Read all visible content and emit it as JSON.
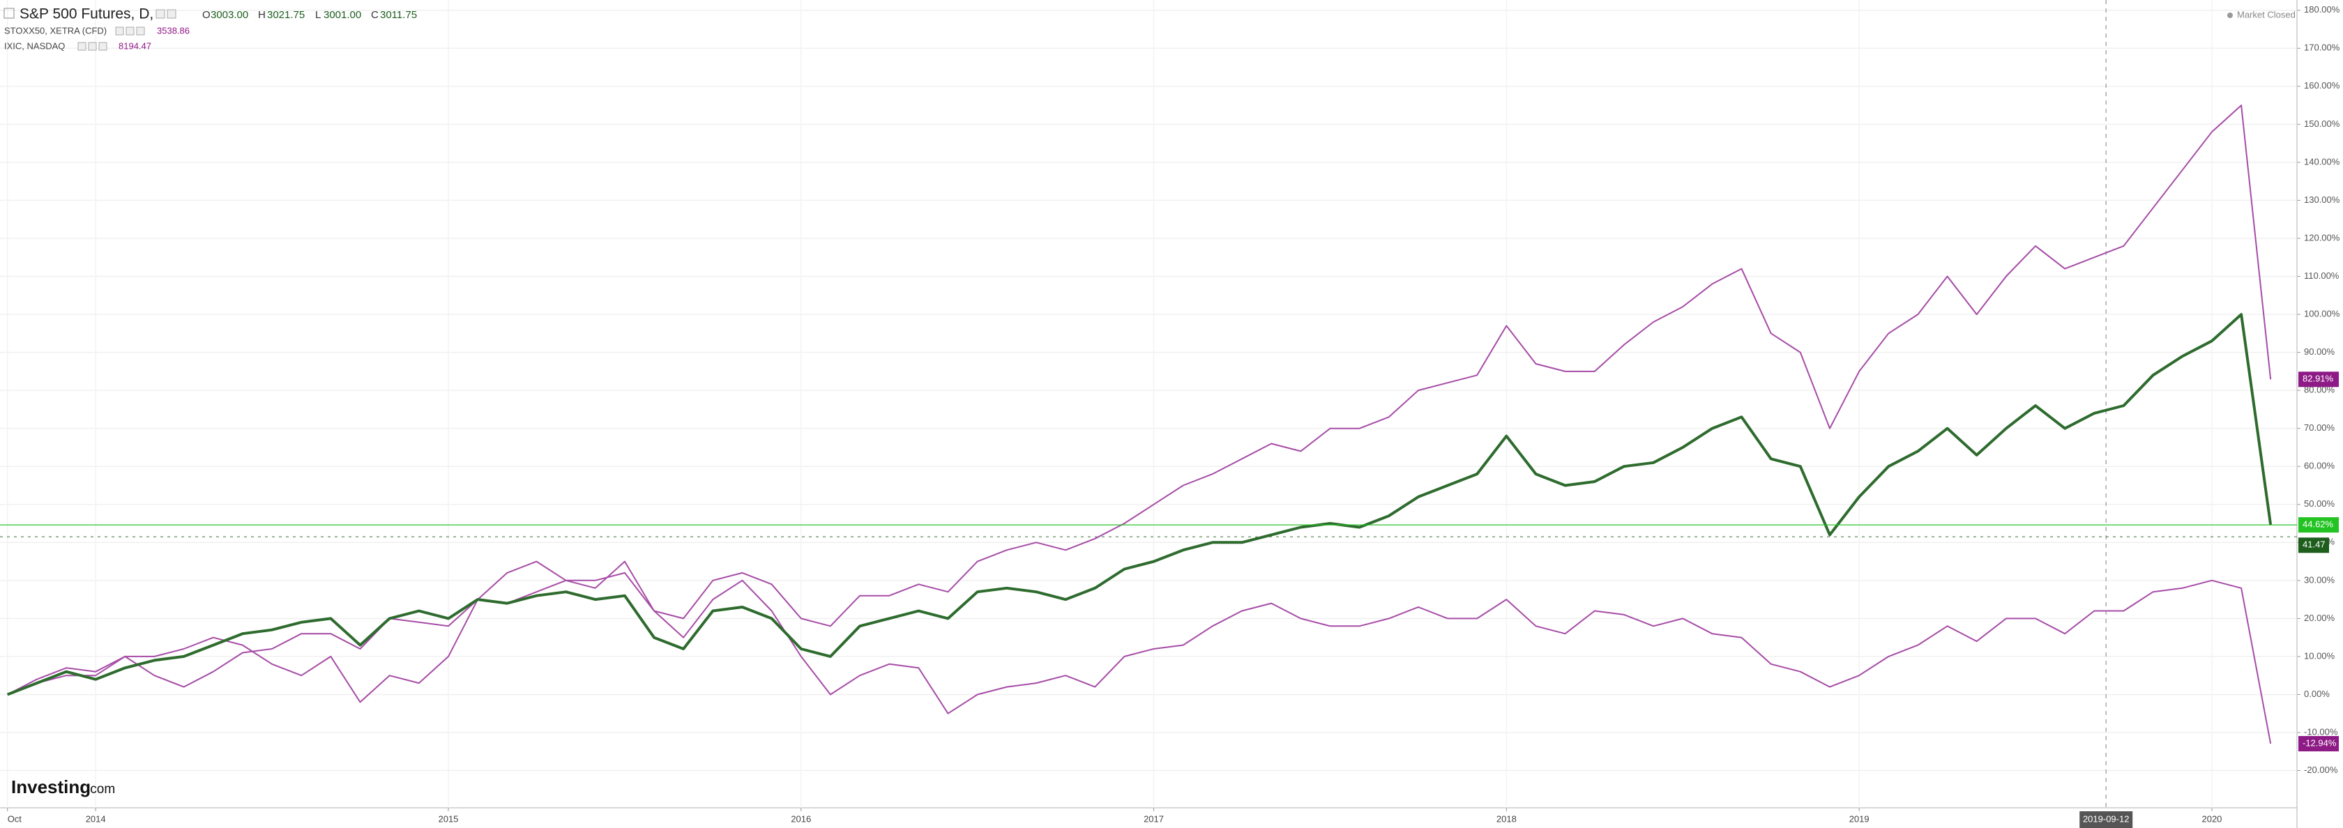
{
  "chart_data": {
    "type": "line",
    "header": {
      "open_label": "O",
      "open": "3003.00",
      "high_label": "H",
      "high": "3021.75",
      "low_label": "L",
      "low": "3001.00",
      "close_label": "C",
      "close": "3011.75",
      "status": "Market Closed",
      "logo": "Investing",
      "logo_suffix": ".com"
    },
    "crosshair_label": "2019-09-12",
    "categories": [
      "Oct",
      null,
      null,
      "2014",
      null,
      null,
      null,
      null,
      null,
      null,
      null,
      null,
      null,
      null,
      null,
      "2015",
      null,
      null,
      null,
      null,
      null,
      null,
      null,
      null,
      null,
      null,
      null,
      "2016",
      null,
      null,
      null,
      null,
      null,
      null,
      null,
      null,
      null,
      null,
      null,
      "2017",
      null,
      null,
      null,
      null,
      null,
      null,
      null,
      null,
      null,
      null,
      null,
      "2018",
      null,
      null,
      null,
      null,
      null,
      null,
      null,
      null,
      null,
      null,
      null,
      "2019",
      null,
      null,
      null,
      null,
      null,
      null,
      null,
      null,
      null,
      null,
      null,
      "2020",
      null,
      null
    ],
    "series": [
      {
        "name": "S&P 500 Futures, D,",
        "color": "#2e6b2e",
        "last_color": "#22c322",
        "values": [
          0,
          3,
          6,
          4,
          7,
          9,
          10,
          13,
          16,
          17,
          19,
          20,
          13,
          20,
          22,
          20,
          25,
          24,
          26,
          27,
          25,
          26,
          15,
          12,
          22,
          23,
          20,
          12,
          10,
          18,
          20,
          22,
          20,
          27,
          28,
          27,
          25,
          28,
          33,
          35,
          38,
          40,
          40,
          42,
          44,
          45,
          44,
          47,
          52,
          55,
          58,
          68,
          58,
          55,
          56,
          60,
          61,
          65,
          70,
          73,
          62,
          60,
          42,
          52,
          60,
          64,
          70,
          63,
          70,
          76,
          70,
          74,
          76,
          84,
          89,
          93,
          100,
          44.62
        ],
        "value_labels": [
          null,
          null,
          null,
          null,
          null,
          null,
          null,
          null,
          null,
          null,
          null,
          null,
          null,
          null,
          null,
          null,
          null,
          null,
          null,
          null,
          null,
          null,
          null,
          null,
          null,
          null,
          null,
          null,
          null,
          null,
          null,
          null,
          null,
          null,
          null,
          null,
          null,
          null,
          null,
          null,
          null,
          null,
          null,
          null,
          null,
          null,
          null,
          null,
          null,
          null,
          null,
          null,
          null,
          null,
          null,
          null,
          null,
          null,
          null,
          null,
          null,
          null,
          null,
          null,
          null,
          null,
          null,
          null,
          null,
          null,
          null,
          null,
          null,
          null,
          null,
          null,
          null,
          "44.62%"
        ]
      },
      {
        "name": "STOXX50, XETRA (CFD)",
        "last_price": "3538.86",
        "color": "#a64ca6",
        "last_color": "#8e1a86",
        "values": [
          0,
          3,
          5,
          5,
          10,
          10,
          12,
          15,
          13,
          8,
          5,
          10,
          -2,
          5,
          3,
          10,
          25,
          32,
          35,
          30,
          28,
          35,
          22,
          15,
          25,
          30,
          22,
          10,
          0,
          5,
          8,
          7,
          -5,
          0,
          2,
          3,
          5,
          2,
          10,
          12,
          13,
          18,
          22,
          24,
          20,
          18,
          18,
          20,
          23,
          20,
          20,
          25,
          18,
          16,
          22,
          21,
          18,
          20,
          16,
          15,
          8,
          6,
          2,
          5,
          10,
          13,
          18,
          14,
          20,
          20,
          16,
          22,
          22,
          27,
          28,
          30,
          28,
          -12.94
        ],
        "value_labels": [
          null,
          null,
          null,
          null,
          null,
          null,
          null,
          null,
          null,
          null,
          null,
          null,
          null,
          null,
          null,
          null,
          null,
          null,
          null,
          null,
          null,
          null,
          null,
          null,
          null,
          null,
          null,
          null,
          null,
          null,
          null,
          null,
          null,
          null,
          null,
          null,
          null,
          null,
          null,
          null,
          null,
          null,
          null,
          null,
          null,
          null,
          null,
          null,
          null,
          null,
          null,
          null,
          null,
          null,
          null,
          null,
          null,
          null,
          null,
          null,
          null,
          null,
          null,
          null,
          null,
          null,
          null,
          null,
          null,
          null,
          null,
          null,
          null,
          null,
          null,
          null,
          null,
          "-12.94%"
        ]
      },
      {
        "name": "IXIC, NASDAQ",
        "last_price": "8194.47",
        "color": "#a64ca6",
        "last_color": "#8e1a86",
        "values": [
          0,
          4,
          7,
          6,
          10,
          5,
          2,
          6,
          11,
          12,
          16,
          16,
          12,
          20,
          19,
          18,
          25,
          24,
          27,
          30,
          30,
          32,
          22,
          20,
          30,
          32,
          29,
          20,
          18,
          26,
          26,
          29,
          27,
          35,
          38,
          40,
          38,
          41,
          45,
          50,
          55,
          58,
          62,
          66,
          64,
          70,
          70,
          73,
          80,
          82,
          84,
          97,
          87,
          85,
          85,
          92,
          98,
          102,
          108,
          112,
          95,
          90,
          70,
          85,
          95,
          100,
          110,
          100,
          110,
          118,
          112,
          115,
          118,
          128,
          138,
          148,
          155,
          82.91
        ],
        "value_labels": [
          null,
          null,
          null,
          null,
          null,
          null,
          null,
          null,
          null,
          null,
          null,
          null,
          null,
          null,
          null,
          null,
          null,
          null,
          null,
          null,
          null,
          null,
          null,
          null,
          null,
          null,
          null,
          null,
          null,
          null,
          null,
          null,
          null,
          null,
          null,
          null,
          null,
          null,
          null,
          null,
          null,
          null,
          null,
          null,
          null,
          null,
          null,
          null,
          null,
          null,
          null,
          null,
          null,
          null,
          null,
          null,
          null,
          null,
          null,
          null,
          null,
          null,
          null,
          null,
          null,
          null,
          null,
          null,
          null,
          null,
          null,
          null,
          null,
          null,
          null,
          null,
          null,
          "82.91%"
        ]
      }
    ],
    "reference_line": 41.47,
    "reference_color": "#1d5e1d",
    "ylim": [
      -29.8,
      182.7
    ],
    "yticks": [
      {
        "value": -20,
        "label": "-20.00%"
      },
      {
        "value": -10,
        "label": "-10.00%"
      },
      {
        "value": 0,
        "label": "0.00%"
      },
      {
        "value": 10,
        "label": "10.00%"
      },
      {
        "value": 20,
        "label": "20.00%"
      },
      {
        "value": 30,
        "label": "30.00%"
      },
      {
        "value": 40,
        "label": "40.00%"
      },
      {
        "value": 50,
        "label": "50.00%"
      },
      {
        "value": 60,
        "label": "60.00%"
      },
      {
        "value": 70,
        "label": "70.00%"
      },
      {
        "value": 80,
        "label": "80.00%"
      },
      {
        "value": 90,
        "label": "90.00%"
      },
      {
        "value": 100,
        "label": "100.00%"
      },
      {
        "value": 110,
        "label": "110.00%"
      },
      {
        "value": 120,
        "label": "120.00%"
      },
      {
        "value": 130,
        "label": "130.00%"
      },
      {
        "value": 140,
        "label": "140.00%"
      },
      {
        "value": 150,
        "label": "150.00%"
      },
      {
        "value": 160,
        "label": "160.00%"
      },
      {
        "value": 170,
        "label": "170.00%"
      },
      {
        "value": 180,
        "label": "180.00%"
      }
    ],
    "grid": true
  }
}
